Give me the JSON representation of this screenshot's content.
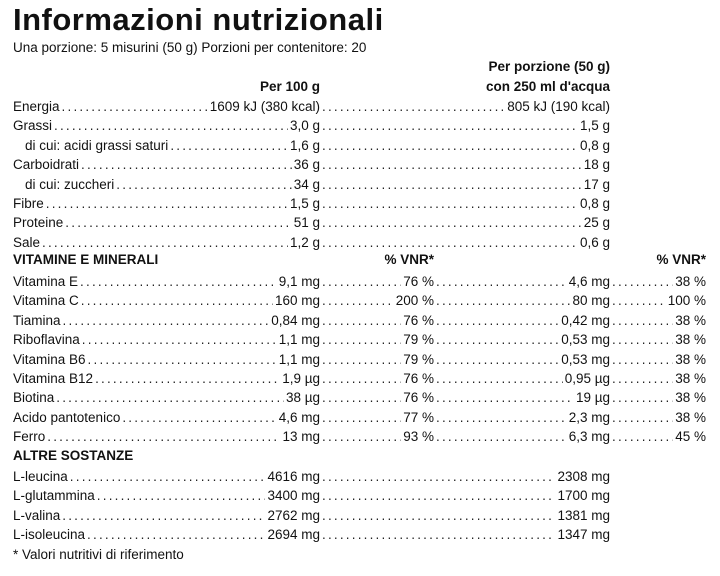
{
  "title": "Informazioni nutrizionali",
  "subtitle": "Una porzione: 5 misurini (50 g)   Porzioni per contenitore: 20",
  "header": {
    "per100": "Per 100 g",
    "perportion_line1": "Per porzione (50 g)",
    "perportion_line2": "con 250 ml d'acqua"
  },
  "nutrients": [
    {
      "label": "Energia",
      "per100": "1609 kJ (380 kcal)",
      "perportion": "805 kJ (190 kcal)"
    },
    {
      "label": "Grassi",
      "per100": "3,0 g",
      "perportion": "1,5 g"
    },
    {
      "label": "di cui: acidi grassi saturi",
      "per100": "1,6 g",
      "perportion": "0,8 g"
    },
    {
      "label": "Carboidrati",
      "per100": "36 g",
      "perportion": "18 g"
    },
    {
      "label": "di cui: zuccheri",
      "per100": "34 g",
      "perportion": "17 g"
    },
    {
      "label": "Fibre",
      "per100": "1,5 g",
      "perportion": "0,8 g"
    },
    {
      "label": "Proteine",
      "per100": "51 g",
      "perportion": "25 g"
    },
    {
      "label": "Sale",
      "per100": "1,2 g",
      "perportion": "0,6 g"
    }
  ],
  "vitamins_section": {
    "title": "VITAMINE E MINERALI",
    "vnr_header_1": "% VNR*",
    "vnr_header_2": "% VNR*"
  },
  "vitamins": [
    {
      "label": "Vitamina E",
      "per100": "9,1 mg",
      "vnr100": "76 %",
      "perportion": "4,6 mg",
      "vnrportion": "38 %"
    },
    {
      "label": "Vitamina C",
      "per100": "160 mg",
      "vnr100": "200 %",
      "perportion": "80 mg",
      "vnrportion": "100 %"
    },
    {
      "label": "Tiamina",
      "per100": "0,84 mg",
      "vnr100": "76 %",
      "perportion": "0,42 mg",
      "vnrportion": "38 %"
    },
    {
      "label": "Riboflavina",
      "per100": "1,1 mg",
      "vnr100": "79 %",
      "perportion": "0,53 mg",
      "vnrportion": "38 %"
    },
    {
      "label": "Vitamina B6",
      "per100": "1,1 mg",
      "vnr100": "79 %",
      "perportion": "0,53 mg",
      "vnrportion": "38 %"
    },
    {
      "label": "Vitamina B12",
      "per100": "1,9 µg",
      "vnr100": "76 %",
      "perportion": "0,95 µg",
      "vnrportion": "38 %"
    },
    {
      "label": "Biotina",
      "per100": "38 µg",
      "vnr100": "76 %",
      "perportion": "19 µg",
      "vnrportion": "38 %"
    },
    {
      "label": "Acido pantotenico",
      "per100": "4,6 mg",
      "vnr100": "77 %",
      "perportion": "2,3 mg",
      "vnrportion": "38 %"
    },
    {
      "label": "Ferro",
      "per100": "13 mg",
      "vnr100": "93 %",
      "perportion": "6,3 mg",
      "vnrportion": "45 %"
    }
  ],
  "other_section": {
    "title": "ALTRE SOSTANZE"
  },
  "others": [
    {
      "label": "L-leucina",
      "per100": "4616 mg",
      "perportion": "2308 mg"
    },
    {
      "label": "L-glutammina",
      "per100": "3400 mg",
      "perportion": "1700 mg"
    },
    {
      "label": "L-valina",
      "per100": "2762 mg",
      "perportion": "1381 mg"
    },
    {
      "label": "L-isoleucina",
      "per100": "2694 mg",
      "perportion": "1347 mg"
    }
  ],
  "footnote": "* Valori nutritivi di riferimento"
}
